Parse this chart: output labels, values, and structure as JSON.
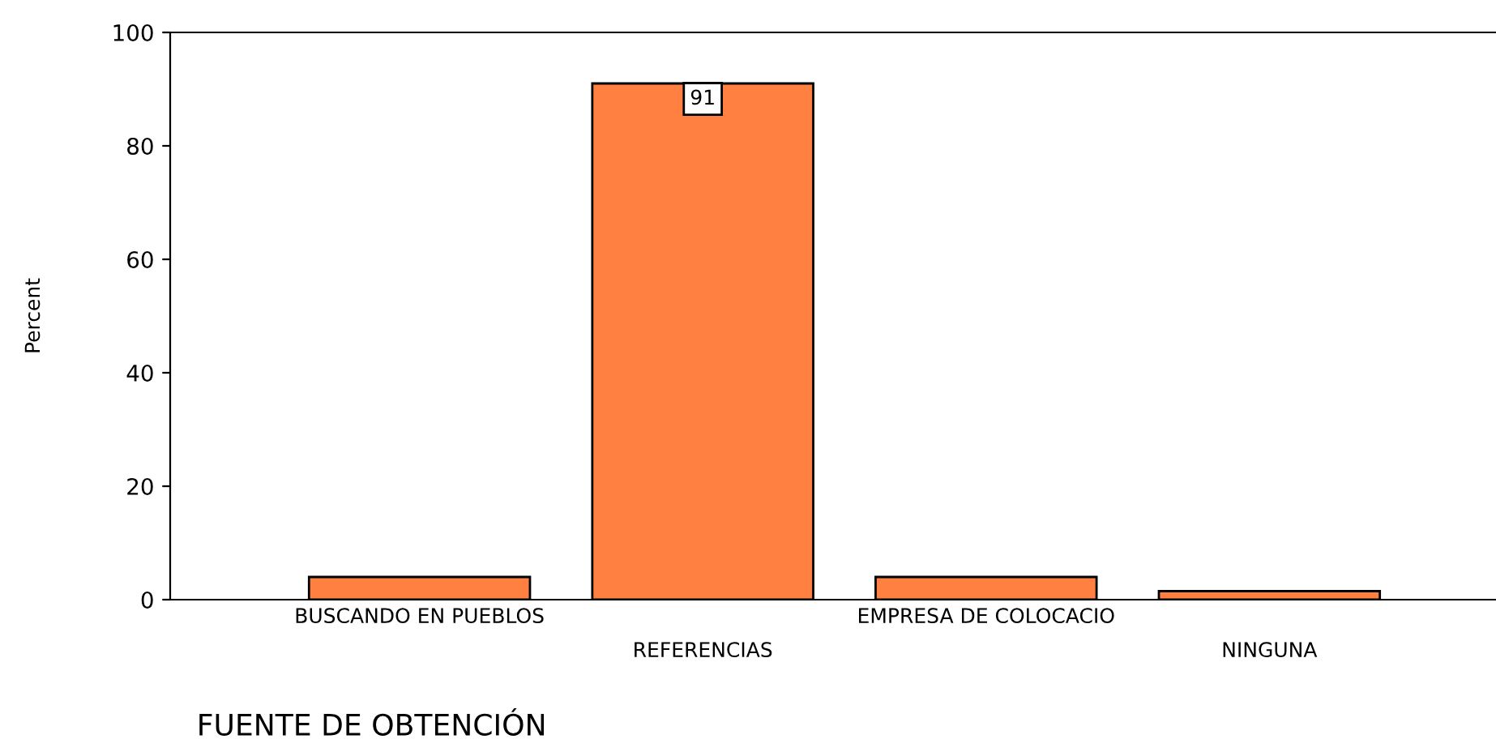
{
  "chart_data": {
    "type": "bar",
    "categories": [
      "BUSCANDO EN PUEBLOS",
      "REFERENCIAS",
      "EMPRESA DE COLOCACIO",
      "NINGUNA"
    ],
    "values": [
      4,
      91,
      4,
      1.5
    ],
    "value_labels": [
      null,
      "91",
      null,
      null
    ],
    "color": "#ff8040",
    "xlabel": "FUENTE DE OBTENCIÓN",
    "ylabel": "Percent",
    "ylim": [
      0,
      100
    ],
    "yticks": [
      0,
      20,
      40,
      60,
      80,
      100
    ],
    "grid": false,
    "legend": false
  }
}
